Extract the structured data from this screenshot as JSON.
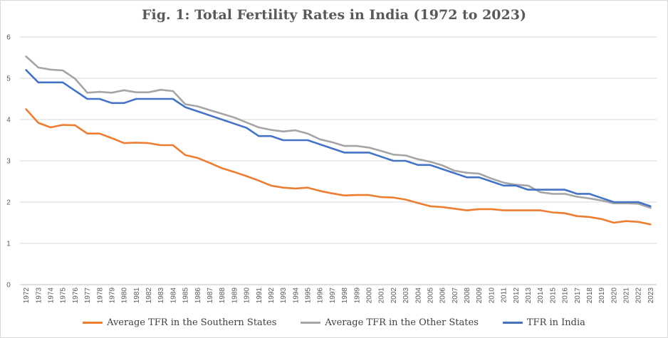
{
  "chart_data": {
    "type": "line",
    "title": "Fig. 1: Total Fertility Rates in India (1972 to 2023)",
    "xlabel": "",
    "ylabel": "",
    "ylim": [
      0,
      6
    ],
    "yticks": [
      "0",
      "1",
      "2",
      "3",
      "4",
      "5",
      "6"
    ],
    "grid": true,
    "legend": "bottom",
    "x": [
      "1972",
      "1973",
      "1974",
      "1975",
      "1976",
      "1977",
      "1978",
      "1979",
      "1980",
      "1981",
      "1982",
      "1983",
      "1984",
      "1985",
      "1986",
      "1987",
      "1988",
      "1989",
      "1990",
      "1991",
      "1992",
      "1993",
      "1994",
      "1995",
      "1996",
      "1997",
      "1998",
      "1999",
      "2000",
      "2001",
      "2002",
      "2003",
      "2004",
      "2005",
      "2006",
      "2007",
      "2008",
      "2009",
      "2010",
      "2011",
      "2012",
      "2013",
      "2014",
      "2015",
      "2016",
      "2017",
      "2018",
      "2019",
      "2020",
      "2021",
      "2022",
      "2023"
    ],
    "series": [
      {
        "name": "Average TFR in the Southern States",
        "color": "#ED7D31",
        "values": [
          4.25,
          3.92,
          3.81,
          3.87,
          3.86,
          3.66,
          3.66,
          3.55,
          3.43,
          3.44,
          3.43,
          3.38,
          3.38,
          3.14,
          3.07,
          2.95,
          2.82,
          2.73,
          2.63,
          2.52,
          2.4,
          2.35,
          2.33,
          2.35,
          2.27,
          2.21,
          2.16,
          2.17,
          2.17,
          2.12,
          2.11,
          2.06,
          1.98,
          1.9,
          1.88,
          1.84,
          1.8,
          1.83,
          1.83,
          1.8,
          1.8,
          1.8,
          1.8,
          1.75,
          1.73,
          1.66,
          1.64,
          1.59,
          1.5,
          1.54,
          1.52,
          1.46
        ]
      },
      {
        "name": "Average TFR in the Other States",
        "color": "#A5A5A5",
        "values": [
          5.53,
          5.26,
          5.21,
          5.19,
          4.99,
          4.65,
          4.67,
          4.65,
          4.71,
          4.66,
          4.66,
          4.72,
          4.69,
          4.37,
          4.32,
          4.23,
          4.14,
          4.05,
          3.93,
          3.81,
          3.75,
          3.71,
          3.74,
          3.66,
          3.52,
          3.45,
          3.36,
          3.36,
          3.32,
          3.24,
          3.15,
          3.13,
          3.04,
          2.98,
          2.89,
          2.76,
          2.71,
          2.69,
          2.57,
          2.47,
          2.42,
          2.4,
          2.24,
          2.2,
          2.2,
          2.13,
          2.09,
          2.04,
          1.97,
          1.97,
          1.96,
          1.86
        ]
      },
      {
        "name": "TFR in India",
        "color": "#4472C4",
        "values": [
          5.2,
          4.9,
          4.9,
          4.9,
          4.7,
          4.5,
          4.5,
          4.4,
          4.4,
          4.5,
          4.5,
          4.5,
          4.5,
          4.3,
          4.2,
          4.1,
          4.0,
          3.9,
          3.8,
          3.6,
          3.6,
          3.5,
          3.5,
          3.5,
          3.4,
          3.3,
          3.2,
          3.2,
          3.2,
          3.1,
          3.0,
          3.0,
          2.9,
          2.9,
          2.8,
          2.7,
          2.6,
          2.6,
          2.5,
          2.4,
          2.4,
          2.3,
          2.3,
          2.3,
          2.3,
          2.2,
          2.2,
          2.1,
          2.0,
          2.0,
          2.0,
          1.9
        ]
      }
    ]
  }
}
